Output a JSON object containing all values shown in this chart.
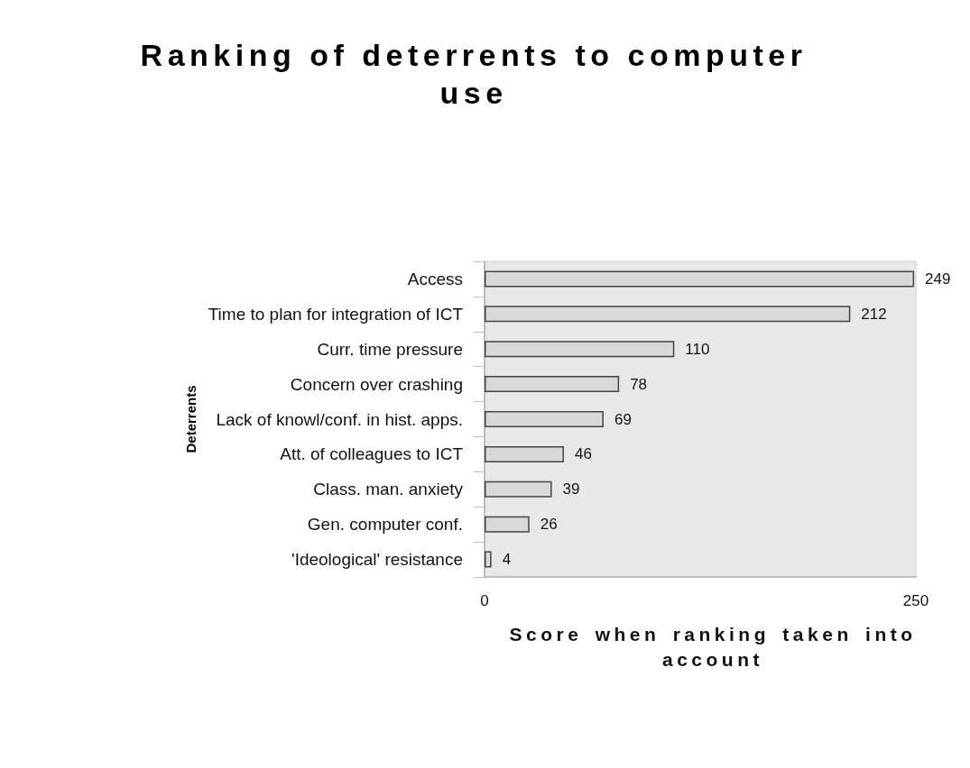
{
  "chart_data": {
    "type": "bar",
    "orientation": "horizontal",
    "title": "Ranking of deterrents to computer use",
    "xlabel": "Score when ranking taken into account",
    "ylabel": "Deterrents",
    "categories": [
      "Access",
      "Time to plan for integration of ICT",
      "Curr. time pressure",
      "Concern over crashing",
      "Lack of knowl/conf. in hist. apps.",
      "Att. of colleagues to ICT",
      "Class. man. anxiety",
      "Gen. computer conf.",
      "'Ideological' resistance"
    ],
    "values": [
      249,
      212,
      110,
      78,
      69,
      46,
      39,
      26,
      4
    ],
    "color": "#d9d9d9",
    "xlim": [
      0,
      250
    ],
    "xticks": [
      0,
      250
    ],
    "data_labels": true
  }
}
